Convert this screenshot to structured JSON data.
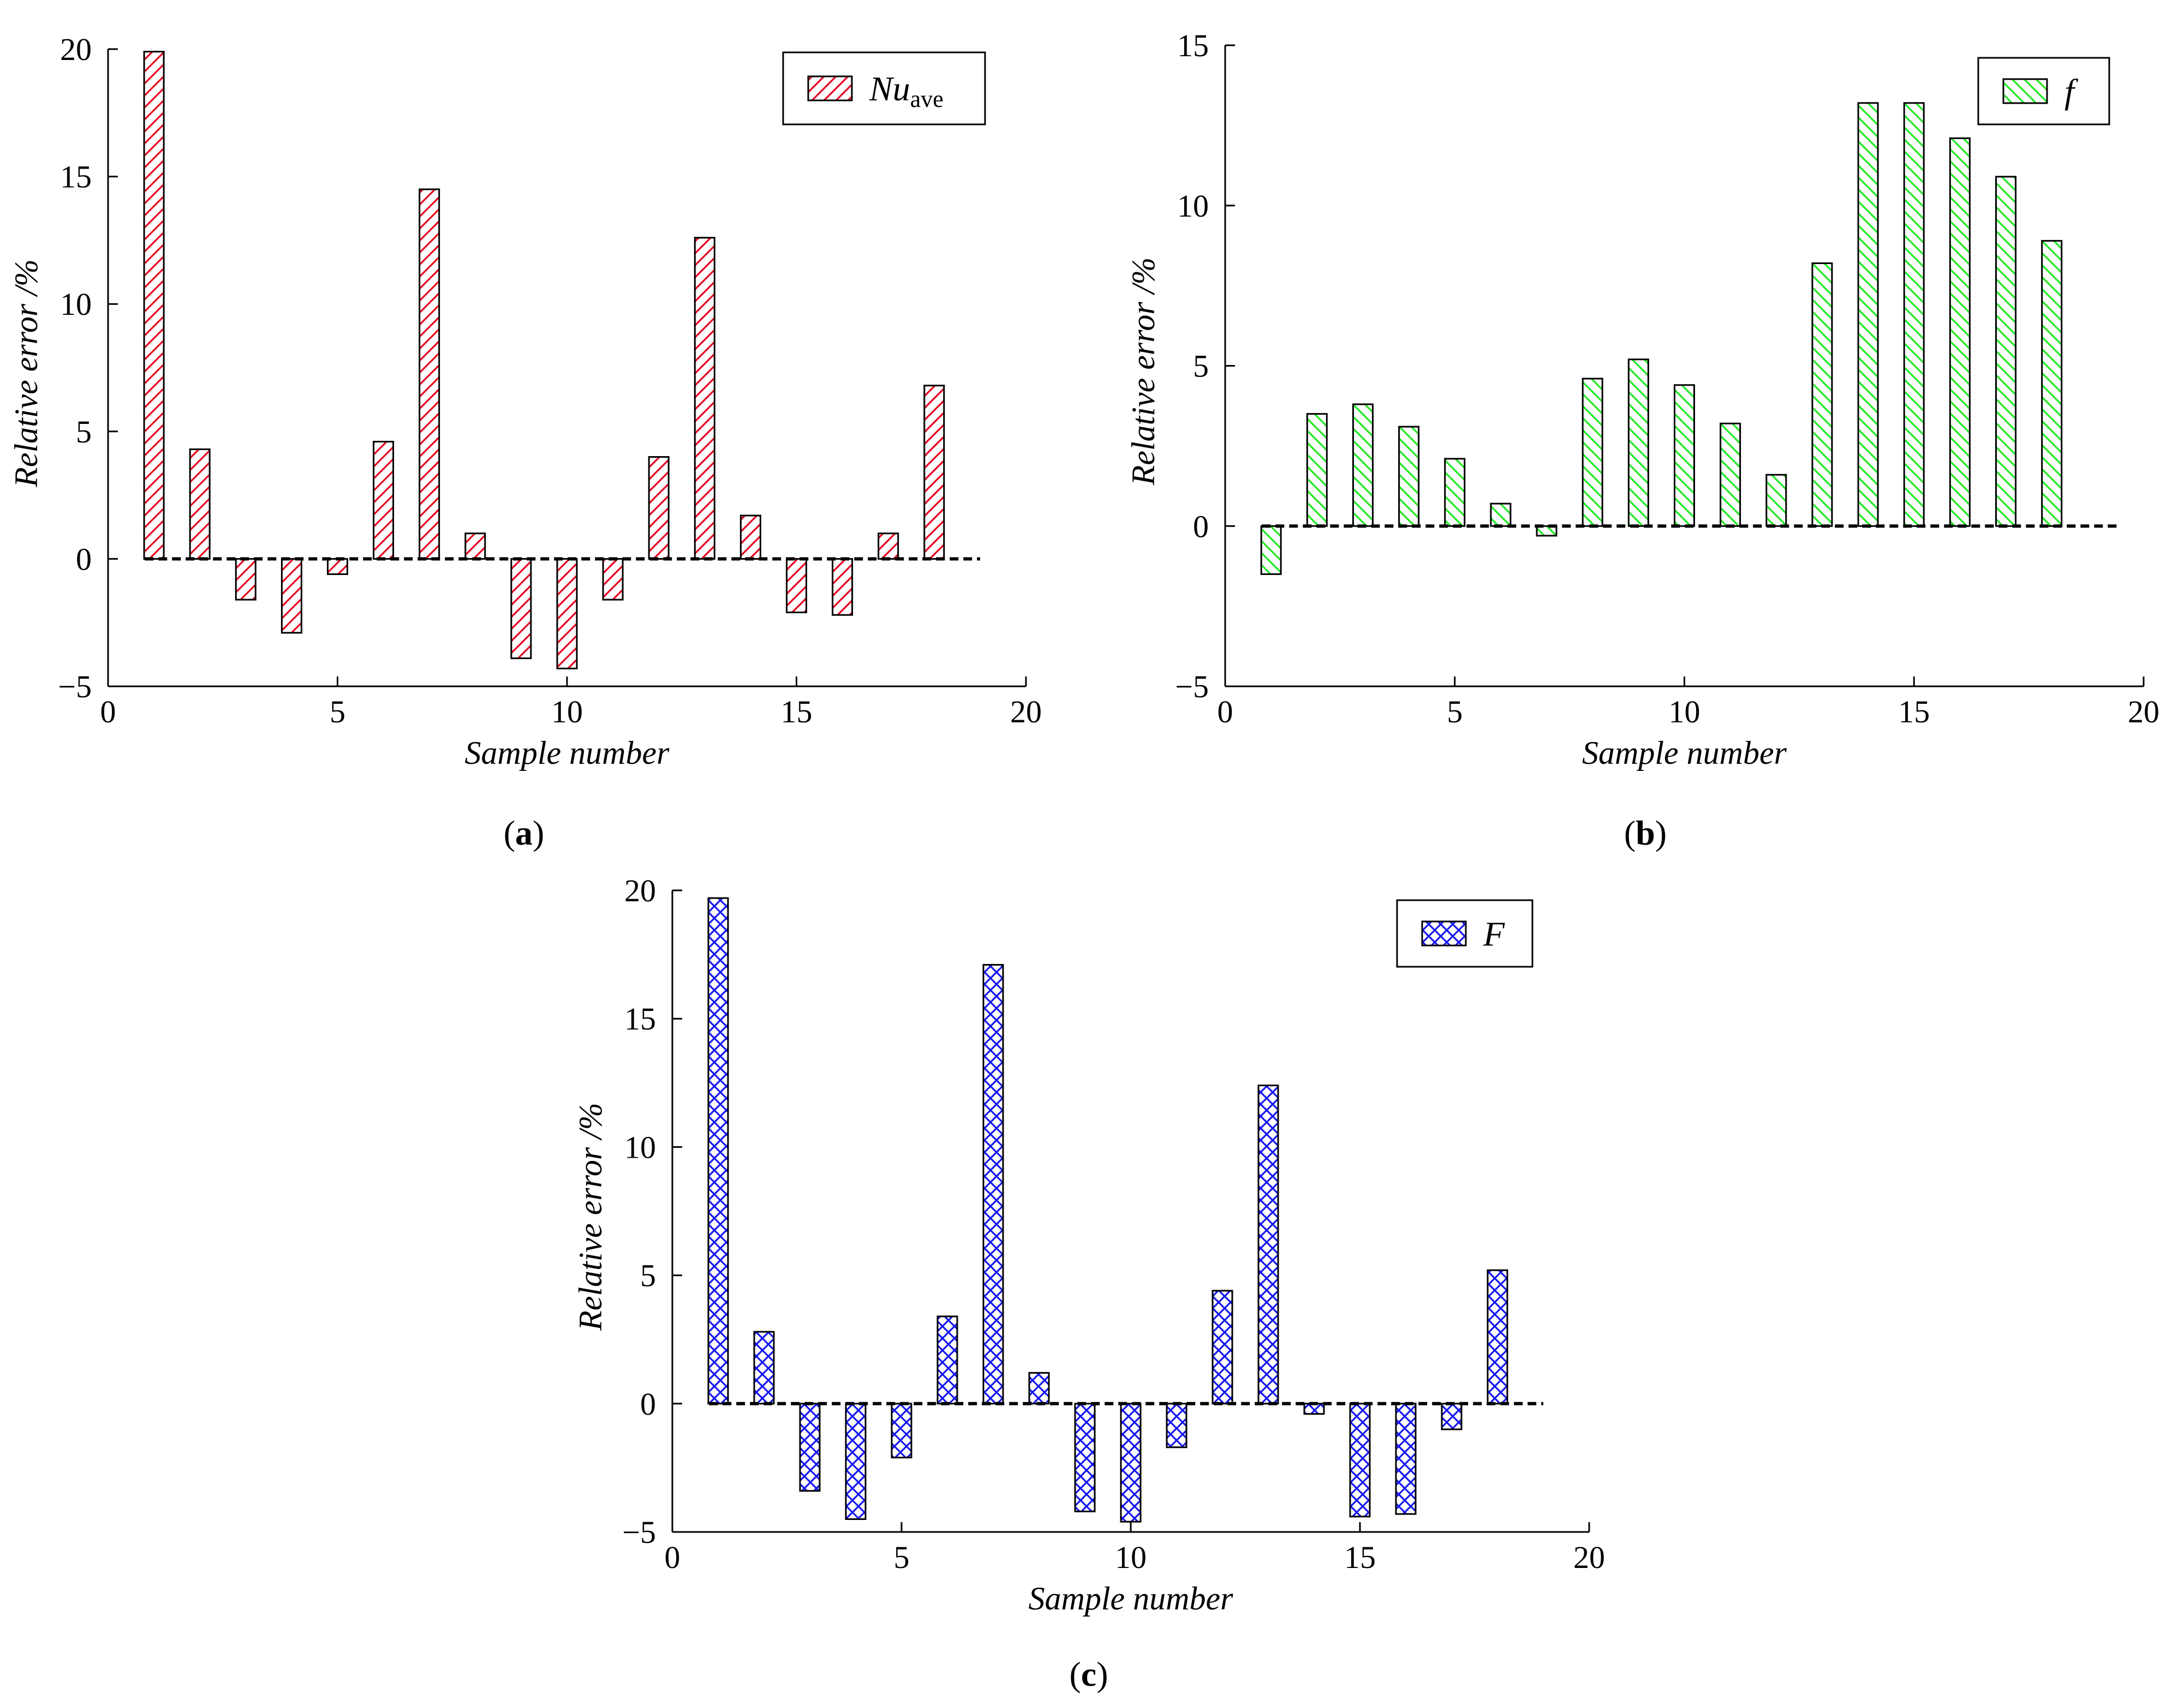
{
  "chart_data": [
    {
      "type": "bar",
      "panel": "a",
      "caption_letter": "a",
      "caption_open": "(",
      "caption_close": ")",
      "legend": {
        "name": "Nu",
        "subscript": "ave",
        "placement": "top-right"
      },
      "color": "#e8001c",
      "pattern": "diagonal-hatch-forward",
      "xlabel": "Sample number",
      "ylabel": "Relative error /%",
      "xlim": [
        0,
        20
      ],
      "ylim": [
        -5,
        20
      ],
      "xticks": [
        0,
        5,
        10,
        15,
        20
      ],
      "yticks": [
        -5,
        0,
        5,
        10,
        15,
        20
      ],
      "xtick_labels": [
        "0",
        "5",
        "10",
        "15",
        "20"
      ],
      "ytick_labels": [
        "−5",
        "0",
        "5",
        "10",
        "15",
        "20"
      ],
      "zero_line": {
        "from": 0.8,
        "to": 19
      },
      "x": [
        1,
        2,
        3,
        4,
        5,
        6,
        7,
        8,
        9,
        10,
        11,
        12,
        13,
        14,
        15,
        16,
        17,
        18
      ],
      "values": [
        19.9,
        4.3,
        -1.6,
        -2.9,
        -0.6,
        4.6,
        14.5,
        1.0,
        -3.9,
        -4.3,
        -1.6,
        4.0,
        12.6,
        1.7,
        -2.1,
        -2.2,
        1.0,
        6.8
      ]
    },
    {
      "type": "bar",
      "panel": "b",
      "caption_letter": "b",
      "caption_open": "(",
      "caption_close": ")",
      "legend": {
        "name": "f",
        "subscript": "",
        "placement": "top-right"
      },
      "color": "#1ee81e",
      "pattern": "diagonal-hatch-backward",
      "xlabel": "Sample number",
      "ylabel": "Relative error /%",
      "xlim": [
        0,
        20
      ],
      "ylim": [
        -5,
        15
      ],
      "xticks": [
        0,
        5,
        10,
        15,
        20
      ],
      "yticks": [
        -5,
        0,
        5,
        10,
        15
      ],
      "xtick_labels": [
        "0",
        "5",
        "10",
        "15",
        "20"
      ],
      "ytick_labels": [
        "−5",
        "0",
        "5",
        "10",
        "15"
      ],
      "zero_line": {
        "from": 0.8,
        "to": 19.5
      },
      "x": [
        1,
        2,
        3,
        4,
        5,
        6,
        7,
        8,
        9,
        10,
        11,
        12,
        13,
        14,
        15,
        16,
        17,
        18
      ],
      "values": [
        -1.5,
        3.5,
        3.8,
        3.1,
        2.1,
        0.7,
        -0.3,
        4.6,
        5.2,
        4.4,
        3.2,
        1.6,
        8.2,
        13.2,
        13.2,
        12.1,
        10.9,
        8.9
      ]
    },
    {
      "type": "bar",
      "panel": "c",
      "caption_letter": "c",
      "caption_open": "(",
      "caption_close": ")",
      "legend": {
        "name": "F",
        "subscript": "",
        "placement": "top-right"
      },
      "color": "#1414f0",
      "pattern": "cross-hatch",
      "xlabel": "Sample number",
      "ylabel": "Relative error /%",
      "xlim": [
        0,
        20
      ],
      "ylim": [
        -5,
        20
      ],
      "xticks": [
        0,
        5,
        10,
        15,
        20
      ],
      "yticks": [
        -5,
        0,
        5,
        10,
        15,
        20
      ],
      "xtick_labels": [
        "0",
        "5",
        "10",
        "15",
        "20"
      ],
      "ytick_labels": [
        "−5",
        "0",
        "5",
        "10",
        "15",
        "20"
      ],
      "zero_line": {
        "from": 0.8,
        "to": 19
      },
      "x": [
        1,
        2,
        3,
        4,
        5,
        6,
        7,
        8,
        9,
        10,
        11,
        12,
        13,
        14,
        15,
        16,
        17,
        18
      ],
      "values": [
        19.7,
        2.8,
        -3.4,
        -4.5,
        -2.1,
        3.4,
        17.1,
        1.2,
        -4.2,
        -4.6,
        -1.7,
        4.4,
        12.4,
        -0.4,
        -4.4,
        -4.3,
        -1.0,
        5.2
      ]
    }
  ]
}
